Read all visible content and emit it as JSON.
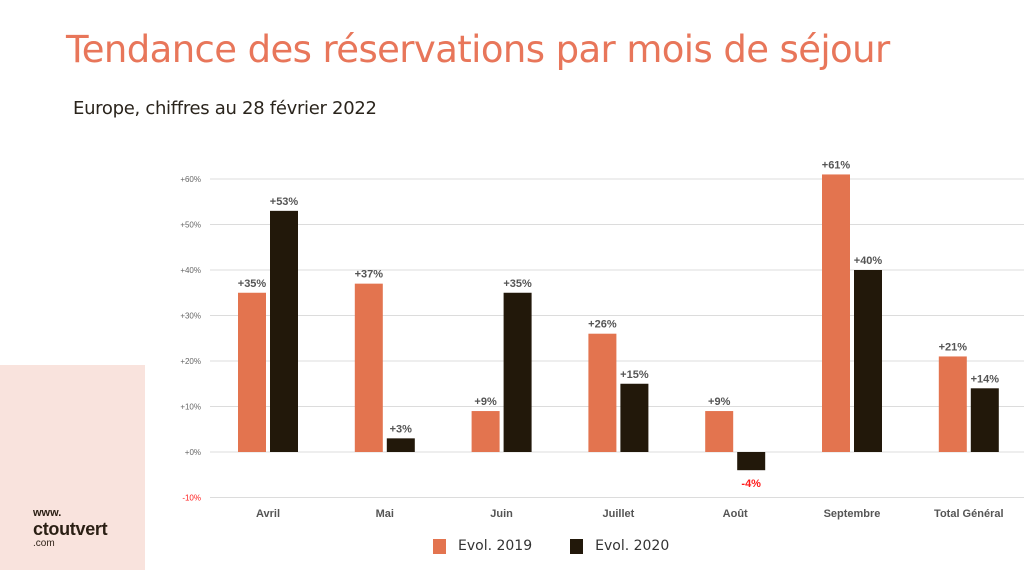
{
  "header": {
    "title": "Tendance des réservations par mois de séjour",
    "subtitle": "Europe, chiffres au 28 février 2022"
  },
  "brand": {
    "www": "www.",
    "name": "ctoutvert",
    "com": ".com"
  },
  "colors": {
    "title": "#E8765A",
    "series_2019": "#E3744F",
    "series_2020": "#22180A",
    "negative_label": "#FF1A1A",
    "panel": "#F9E3DD"
  },
  "legend": [
    {
      "label": "Evol. 2019",
      "color": "#E3744F"
    },
    {
      "label": "Evol. 2020",
      "color": "#22180A"
    }
  ],
  "chart_data": {
    "type": "bar",
    "title": "Tendance des réservations par mois de séjour",
    "subtitle": "Europe, chiffres au 28 février 2022",
    "xlabel": "",
    "ylabel": "",
    "categories": [
      "Avril",
      "Mai",
      "Juin",
      "Juillet",
      "Août",
      "Septembre",
      "Total Général"
    ],
    "series": [
      {
        "name": "Evol. 2019",
        "values": [
          35,
          37,
          9,
          26,
          9,
          61,
          21
        ],
        "labels": [
          "+35%",
          "+37%",
          "+9%",
          "+26%",
          "+9%",
          "+61%",
          "+21%"
        ]
      },
      {
        "name": "Evol. 2020",
        "values": [
          53,
          3,
          35,
          15,
          -4,
          40,
          14
        ],
        "labels": [
          "+53%",
          "+3%",
          "+35%",
          "+15%",
          "-4%",
          "+40%",
          "+14%"
        ]
      }
    ],
    "ylim": [
      -10,
      60
    ],
    "yticks": [
      -10,
      0,
      10,
      20,
      30,
      40,
      50,
      60
    ],
    "ytick_labels": [
      "-10%",
      "+0%",
      "+10%",
      "+20%",
      "+30%",
      "+40%",
      "+50%",
      "+60%"
    ],
    "grid": true,
    "legend_position": "bottom"
  }
}
